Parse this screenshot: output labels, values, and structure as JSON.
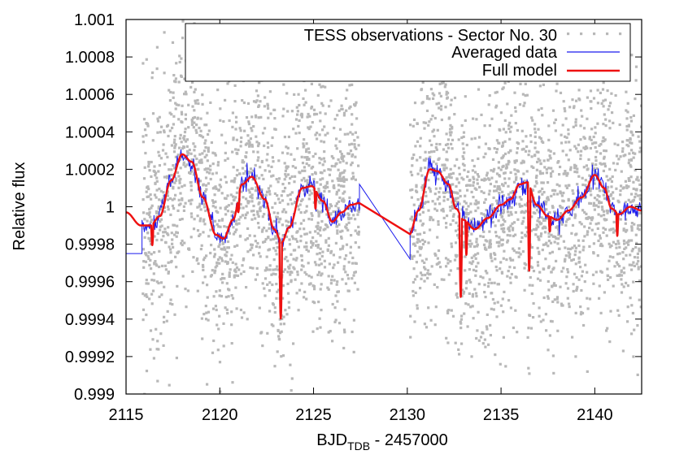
{
  "chart_data": {
    "type": "line",
    "xlabel": {
      "main": "BJD",
      "sub": "TDB",
      "suffix": " - 2457000"
    },
    "ylabel": "Relative flux",
    "xlim": [
      2115,
      2142.5
    ],
    "ylim": [
      0.999,
      1.001
    ],
    "x_ticks": [
      {
        "value": 2115,
        "label": "2115"
      },
      {
        "value": 2120,
        "label": "2120"
      },
      {
        "value": 2125,
        "label": "2125"
      },
      {
        "value": 2130,
        "label": "2130"
      },
      {
        "value": 2135,
        "label": "2135"
      },
      {
        "value": 2140,
        "label": "2140"
      }
    ],
    "y_ticks": [
      {
        "value": 0.999,
        "label": "0.999"
      },
      {
        "value": 0.9992,
        "label": "0.9992"
      },
      {
        "value": 0.9994,
        "label": "0.9994"
      },
      {
        "value": 0.9996,
        "label": "0.9996"
      },
      {
        "value": 0.9998,
        "label": "0.9998"
      },
      {
        "value": 1.0,
        "label": "1"
      },
      {
        "value": 1.0002,
        "label": "1.0002"
      },
      {
        "value": 1.0004,
        "label": "1.0004"
      },
      {
        "value": 1.0006,
        "label": "1.0006"
      },
      {
        "value": 1.0008,
        "label": "1.0008"
      },
      {
        "value": 1.001,
        "label": "1.001"
      }
    ],
    "grid": false,
    "legend_position": "top-right",
    "series": [
      {
        "name": "TESS observations - Sector No. 30",
        "style": "points",
        "color": "#b8b8b8",
        "segments": [
          [
            2115.85,
            2127.45
          ],
          [
            2130.15,
            2142.5
          ]
        ],
        "scatter_sigma": 0.00033
      },
      {
        "name": "Averaged data",
        "style": "line",
        "color": "#1a1aee"
      },
      {
        "name": "Full model",
        "style": "line",
        "color": "#ee1010"
      }
    ],
    "model_nodes": [
      [
        2115.0,
        0.99997
      ],
      [
        2115.8,
        0.9999
      ],
      [
        2116.3,
        0.9999
      ],
      [
        2116.8,
        0.99995
      ],
      [
        2117.4,
        1.00014
      ],
      [
        2118.0,
        1.00028
      ],
      [
        2118.5,
        1.00024
      ],
      [
        2119.1,
        1.00005
      ],
      [
        2119.8,
        0.99985
      ],
      [
        2120.2,
        0.99983
      ],
      [
        2120.7,
        0.99993
      ],
      [
        2121.2,
        1.00012
      ],
      [
        2121.7,
        1.00016
      ],
      [
        2122.4,
        1.00004
      ],
      [
        2122.9,
        0.99988
      ],
      [
        2123.3,
        0.99981
      ],
      [
        2123.7,
        0.99989
      ],
      [
        2124.4,
        1.0001
      ],
      [
        2124.9,
        1.00011
      ],
      [
        2125.5,
        1.00003
      ],
      [
        2126.0,
        0.99992
      ],
      [
        2126.5,
        0.99997
      ],
      [
        2127.0,
        1.00001
      ],
      [
        2127.45,
        1.00002
      ],
      [
        2130.1,
        0.99985
      ],
      [
        2130.6,
        0.99998
      ],
      [
        2131.2,
        1.0002
      ],
      [
        2131.6,
        1.00019
      ],
      [
        2132.2,
        1.00012
      ],
      [
        2132.6,
        0.99999
      ],
      [
        2133.0,
        0.99993
      ],
      [
        2133.6,
        0.99988
      ],
      [
        2134.3,
        0.99994
      ],
      [
        2135.0,
        1.00001
      ],
      [
        2135.5,
        1.00004
      ],
      [
        2136.0,
        1.00012
      ],
      [
        2136.4,
        1.00013
      ],
      [
        2136.9,
        1.00001
      ],
      [
        2137.5,
        0.99995
      ],
      [
        2138.0,
        0.99993
      ],
      [
        2138.6,
        0.99998
      ],
      [
        2139.3,
        1.00005
      ],
      [
        2140.0,
        1.00017
      ],
      [
        2140.5,
        1.0001
      ],
      [
        2140.9,
        0.99999
      ],
      [
        2141.3,
        0.99996
      ],
      [
        2141.9,
        1.0
      ],
      [
        2142.5,
        0.99998
      ]
    ],
    "model_dips": [
      {
        "center": 2116.4,
        "depth": 0.00011,
        "width": 0.06
      },
      {
        "center": 2121.0,
        "depth": 8e-05,
        "width": 0.06
      },
      {
        "center": 2123.25,
        "depth": 0.00041,
        "width": 0.07
      },
      {
        "center": 2125.1,
        "depth": 0.0001,
        "width": 0.05
      },
      {
        "center": 2132.85,
        "depth": 0.00043,
        "width": 0.07
      },
      {
        "center": 2133.15,
        "depth": 0.00018,
        "width": 0.05
      },
      {
        "center": 2136.5,
        "depth": 0.00046,
        "width": 0.07
      },
      {
        "center": 2137.6,
        "depth": 8e-05,
        "width": 0.05
      },
      {
        "center": 2141.2,
        "depth": 0.00012,
        "width": 0.05
      }
    ]
  }
}
